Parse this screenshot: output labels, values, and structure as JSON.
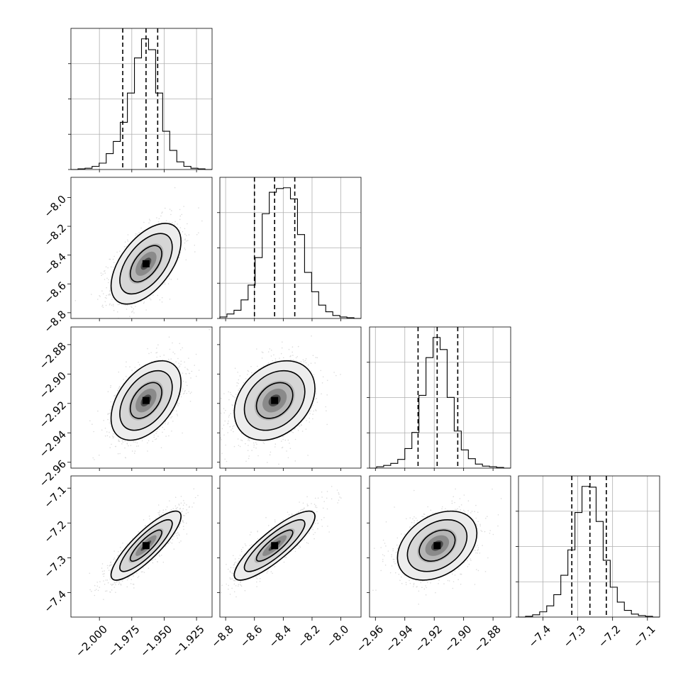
{
  "chart_data": {
    "type": "corner",
    "title": "",
    "parameters": [
      {
        "index": 0,
        "median": -1.964,
        "q16": -1.982,
        "q84": -1.955,
        "range": [
          -2.022,
          -1.913
        ],
        "ticks": [
          -2.0,
          -1.975,
          -1.95,
          -1.925
        ],
        "tick_labels": [
          "−2.000",
          "−1.975",
          "−1.950",
          "−1.925"
        ]
      },
      {
        "index": 1,
        "median": -8.46,
        "q16": -8.6,
        "q84": -8.32,
        "range": [
          -8.84,
          -7.86
        ],
        "ticks": [
          -8.8,
          -8.6,
          -8.4,
          -8.2,
          -8.0
        ],
        "tick_labels": [
          "−8.8",
          "−8.6",
          "−8.4",
          "−8.2",
          "−8.0"
        ]
      },
      {
        "index": 2,
        "median": -2.918,
        "q16": -2.931,
        "q84": -2.904,
        "range": [
          -2.964,
          -2.868
        ],
        "ticks": [
          -2.96,
          -2.94,
          -2.92,
          -2.9,
          -2.88
        ],
        "tick_labels": [
          "−2.96",
          "−2.94",
          "−2.92",
          "−2.90",
          "−2.88"
        ]
      },
      {
        "index": 3,
        "median": -7.265,
        "q16": -7.317,
        "q84": -7.218,
        "range": [
          -7.47,
          -7.065
        ],
        "ticks": [
          -7.4,
          -7.3,
          -7.2,
          -7.1
        ],
        "tick_labels": [
          "−7.4",
          "−7.3",
          "−7.2",
          "−7.1"
        ]
      }
    ],
    "histograms": [
      {
        "param": 0,
        "counts": [
          0,
          1,
          2,
          5,
          10,
          25,
          44,
          74,
          120,
          175,
          205,
          188,
          120,
          60,
          30,
          12,
          5,
          2,
          1,
          0
        ]
      },
      {
        "param": 1,
        "counts": [
          2,
          6,
          11,
          25,
          45,
          82,
          141,
          170,
          175,
          176,
          161,
          113,
          62,
          36,
          18,
          9,
          4,
          2,
          1,
          0
        ]
      },
      {
        "param": 2,
        "counts": [
          0,
          2,
          4,
          7,
          13,
          29,
          53,
          108,
          164,
          194,
          176,
          105,
          55,
          27,
          14,
          6,
          3,
          2,
          1,
          0
        ]
      },
      {
        "param": 3,
        "counts": [
          0,
          1,
          3,
          7,
          15,
          30,
          56,
          90,
          140,
          175,
          174,
          128,
          76,
          40,
          20,
          9,
          4,
          2,
          1,
          0
        ]
      }
    ],
    "grid_lines_in_histograms": true
  }
}
